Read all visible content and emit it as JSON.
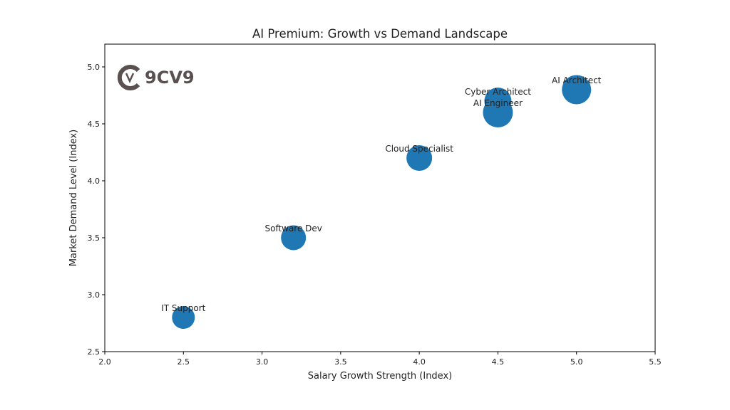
{
  "chart_data": {
    "type": "scatter",
    "title": "AI Premium: Growth vs Demand Landscape",
    "xlabel": "Salary Growth Strength (Index)",
    "ylabel": "Market Demand Level (Index)",
    "xlim": [
      2.0,
      5.5
    ],
    "ylim": [
      2.5,
      5.2
    ],
    "xticks": [
      "2.0",
      "2.5",
      "3.0",
      "3.5",
      "4.0",
      "4.5",
      "5.0",
      "5.5"
    ],
    "yticks": [
      "2.5",
      "3.0",
      "3.5",
      "4.0",
      "4.5",
      "5.0"
    ],
    "grid": false,
    "color": "#1f77b4",
    "points": [
      {
        "label": "IT Support",
        "x": 2.5,
        "y": 2.8,
        "size": 16
      },
      {
        "label": "Software Dev",
        "x": 3.2,
        "y": 3.5,
        "size": 17.5
      },
      {
        "label": "Cloud Specialist",
        "x": 4.0,
        "y": 4.2,
        "size": 18
      },
      {
        "label": "Cyber Architect",
        "x": 4.5,
        "y": 4.7,
        "size": 19
      },
      {
        "label": "AI Engineer",
        "x": 4.5,
        "y": 4.6,
        "size": 21
      },
      {
        "label": "AI Architect",
        "x": 5.0,
        "y": 4.8,
        "size": 20.5
      }
    ]
  },
  "logo": {
    "text": "9CV9"
  }
}
